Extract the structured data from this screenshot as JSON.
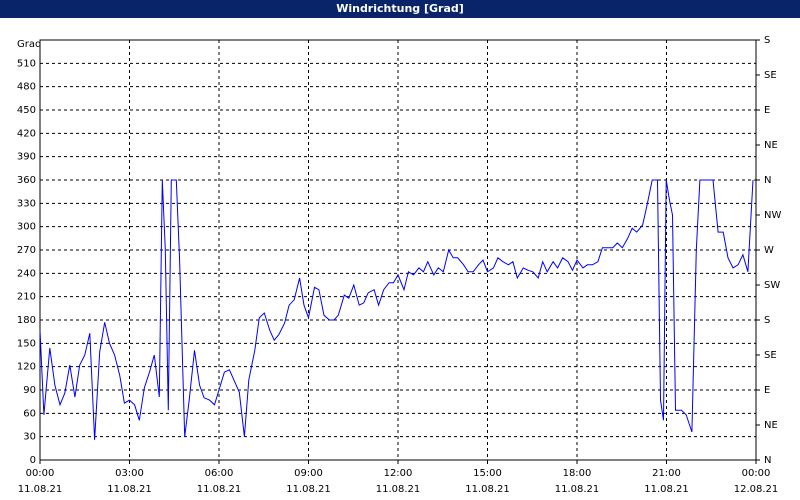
{
  "chart_data": {
    "type": "line",
    "title": "Windrichtung [Grad]",
    "ylabel": "Grad",
    "xlim": [
      0,
      24
    ],
    "xticks": [
      {
        "value": 0,
        "label": "00:00",
        "date": "11.08.21"
      },
      {
        "value": 3,
        "label": "03:00",
        "date": "11.08.21"
      },
      {
        "value": 6,
        "label": "06:00",
        "date": "11.08.21"
      },
      {
        "value": 9,
        "label": "09:00",
        "date": "11.08.21"
      },
      {
        "value": 12,
        "label": "12:00",
        "date": "11.08.21"
      },
      {
        "value": 15,
        "label": "15:00",
        "date": "11.08.21"
      },
      {
        "value": 18,
        "label": "18:00",
        "date": "11.08.21"
      },
      {
        "value": 21,
        "label": "21:00",
        "date": "11.08.21"
      },
      {
        "value": 24,
        "label": "00:00",
        "date": "12.08.21"
      }
    ],
    "ylim": [
      0,
      540
    ],
    "yticks": [
      0,
      30,
      60,
      90,
      120,
      150,
      180,
      210,
      240,
      270,
      300,
      330,
      360,
      390,
      420,
      450,
      480,
      510
    ],
    "y2lim": [
      0,
      540
    ],
    "y2ticks": [
      {
        "value": 0,
        "label": "N"
      },
      {
        "value": 45,
        "label": "NE"
      },
      {
        "value": 90,
        "label": "E"
      },
      {
        "value": 135,
        "label": "SE"
      },
      {
        "value": 180,
        "label": "S"
      },
      {
        "value": 225,
        "label": "SW"
      },
      {
        "value": 270,
        "label": "W"
      },
      {
        "value": 315,
        "label": "NW"
      },
      {
        "value": 360,
        "label": "N"
      },
      {
        "value": 405,
        "label": "NE"
      },
      {
        "value": 450,
        "label": "E"
      },
      {
        "value": 495,
        "label": "SE"
      },
      {
        "value": 540,
        "label": "S"
      }
    ],
    "grid": true,
    "x": [
      0,
      0.13,
      0.33,
      0.5,
      0.67,
      0.83,
      1.0,
      1.17,
      1.33,
      1.5,
      1.67,
      1.83,
      2.0,
      2.17,
      2.33,
      2.5,
      2.67,
      2.83,
      3.0,
      3.17,
      3.33,
      3.5,
      3.67,
      3.83,
      4.0,
      4.1,
      4.2,
      4.3,
      4.4,
      4.57,
      4.68,
      4.85,
      5.0,
      5.18,
      5.35,
      5.5,
      5.68,
      5.85,
      6.0,
      6.18,
      6.35,
      6.5,
      6.68,
      6.85,
      7.0,
      7.2,
      7.35,
      7.52,
      7.7,
      7.85,
      8.0,
      8.2,
      8.35,
      8.52,
      8.7,
      8.85,
      9.0,
      9.2,
      9.35,
      9.52,
      9.7,
      9.85,
      10.0,
      10.2,
      10.35,
      10.52,
      10.7,
      10.85,
      11.0,
      11.2,
      11.35,
      11.52,
      11.7,
      11.85,
      12.0,
      12.2,
      12.35,
      12.52,
      12.7,
      12.85,
      13.0,
      13.2,
      13.35,
      13.52,
      13.7,
      13.85,
      14.0,
      14.2,
      14.35,
      14.52,
      14.7,
      14.85,
      15.0,
      15.2,
      15.35,
      15.52,
      15.7,
      15.85,
      16.0,
      16.2,
      16.35,
      16.52,
      16.7,
      16.85,
      17.0,
      17.2,
      17.35,
      17.52,
      17.7,
      17.85,
      18.0,
      18.2,
      18.35,
      18.52,
      18.7,
      18.85,
      19.0,
      19.2,
      19.35,
      19.52,
      19.7,
      19.85,
      20.0,
      20.2,
      20.35,
      20.52,
      20.7,
      20.8,
      20.9,
      20.99,
      21.1,
      21.2,
      21.3,
      21.5,
      21.66,
      21.85,
      22.0,
      22.12,
      22.4,
      22.56,
      22.73,
      22.9,
      23.06,
      23.23,
      23.4,
      23.56,
      23.73,
      23.9
    ],
    "series": [
      {
        "color": "#0000ff",
        "values": [
          167,
          58,
          144,
          96,
          71,
          86,
          122,
          81,
          122,
          135,
          163,
          26,
          139,
          177,
          150,
          135,
          109,
          73,
          77,
          71,
          51,
          93,
          113,
          135,
          81,
          360,
          270,
          64,
          360,
          360,
          257,
          30,
          77,
          141,
          96,
          80,
          77,
          71,
          90,
          113,
          116,
          103,
          87,
          30,
          103,
          141,
          183,
          189,
          167,
          154,
          161,
          176,
          199,
          206,
          234,
          199,
          183,
          222,
          219,
          186,
          180,
          180,
          186,
          212,
          208,
          225,
          199,
          202,
          215,
          219,
          199,
          219,
          228,
          228,
          238,
          219,
          242,
          238,
          247,
          242,
          255,
          238,
          247,
          242,
          270,
          260,
          260,
          251,
          242,
          242,
          251,
          257,
          242,
          247,
          260,
          255,
          251,
          255,
          234,
          247,
          244,
          242,
          234,
          255,
          242,
          255,
          247,
          260,
          255,
          244,
          257,
          247,
          251,
          251,
          255,
          273,
          273,
          273,
          279,
          273,
          285,
          298,
          293,
          302,
          328,
          360,
          360,
          77,
          51,
          360,
          334,
          315,
          64,
          64,
          58,
          36,
          270,
          360,
          360,
          360,
          293,
          293,
          260,
          247,
          251,
          264,
          242,
          360
        ]
      }
    ]
  }
}
